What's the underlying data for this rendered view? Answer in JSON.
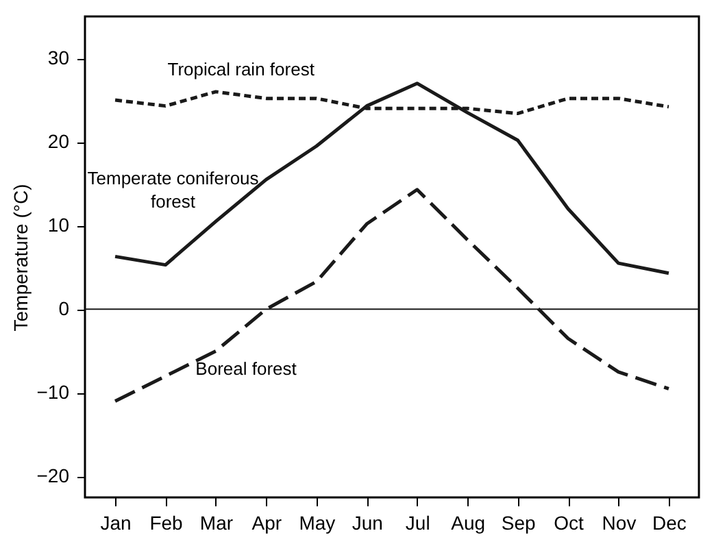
{
  "chart_data": {
    "type": "line",
    "ylabel": "Temperature (°C)",
    "categories": [
      "Jan",
      "Feb",
      "Mar",
      "Apr",
      "May",
      "Jun",
      "Jul",
      "Aug",
      "Sep",
      "Oct",
      "Nov",
      "Dec"
    ],
    "series": [
      {
        "name": "Tropical rain forest",
        "color": "#1a1a1a",
        "line_style": "dotted",
        "values": [
          25,
          24.3,
          26,
          25.2,
          25.2,
          24,
          24,
          24,
          23.4,
          25.2,
          25.2,
          24.2
        ]
      },
      {
        "name": "Temperate coniferous\nforest",
        "color": "#1a1a1a",
        "line_style": "solid",
        "values": [
          6.3,
          5.3,
          10.5,
          15.5,
          19.5,
          24.3,
          27,
          23.5,
          20.2,
          12,
          5.5,
          4.3
        ]
      },
      {
        "name": "Boreal forest",
        "color": "#1a1a1a",
        "line_style": "dashed",
        "values": [
          -11,
          -8,
          -5,
          0,
          3.3,
          10.2,
          14.3,
          8.3,
          2.5,
          -3.5,
          -7.5,
          -9.5
        ]
      }
    ],
    "ylim": [
      -22.5,
      35
    ],
    "yticks": [
      -20,
      -10,
      0,
      10,
      20,
      30
    ],
    "ref_lines": [
      {
        "axis": "y",
        "value": 0,
        "color": "#1a1a1a",
        "line_style": "solid"
      }
    ],
    "grid": false,
    "marker": "none"
  }
}
